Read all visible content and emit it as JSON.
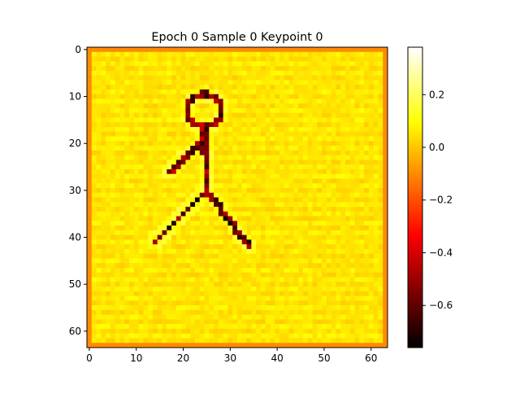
{
  "chart_data": {
    "type": "heatmap",
    "title": "Epoch 0 Sample 0 Keypoint 0",
    "grid_size": [
      64,
      64
    ],
    "x_ticks": [
      0,
      10,
      20,
      30,
      40,
      50,
      60
    ],
    "y_ticks": [
      0,
      10,
      20,
      30,
      40,
      50,
      60
    ],
    "xlim": [
      -0.5,
      63.5
    ],
    "ylim": [
      63.5,
      -0.5
    ],
    "colormap": "hot",
    "colorbar": {
      "vmin": -0.76,
      "vmax": 0.38,
      "ticks": [
        0.2,
        0.0,
        -0.2,
        -0.4,
        -0.6
      ],
      "tick_labels": [
        "0.2",
        "0.0",
        "−0.2",
        "−0.4",
        "−0.6"
      ]
    },
    "background_value": 0.05,
    "border_value": -0.1,
    "figure": {
      "head": {
        "center": [
          24.5,
          13
        ],
        "radius": 3.5,
        "value": -0.55
      },
      "strokes": [
        {
          "name": "torso",
          "from": [
            24.5,
            17
          ],
          "to": [
            25,
            30
          ],
          "value": -0.55
        },
        {
          "name": "arm",
          "from": [
            24.5,
            19
          ],
          "to": [
            17,
            26
          ],
          "value": -0.55
        },
        {
          "name": "left-leg",
          "from": [
            25,
            30
          ],
          "to": [
            14,
            41
          ],
          "value": -0.6
        },
        {
          "name": "right-leg",
          "from": [
            25,
            30
          ],
          "to": [
            34,
            42
          ],
          "value": -0.6
        }
      ]
    }
  }
}
